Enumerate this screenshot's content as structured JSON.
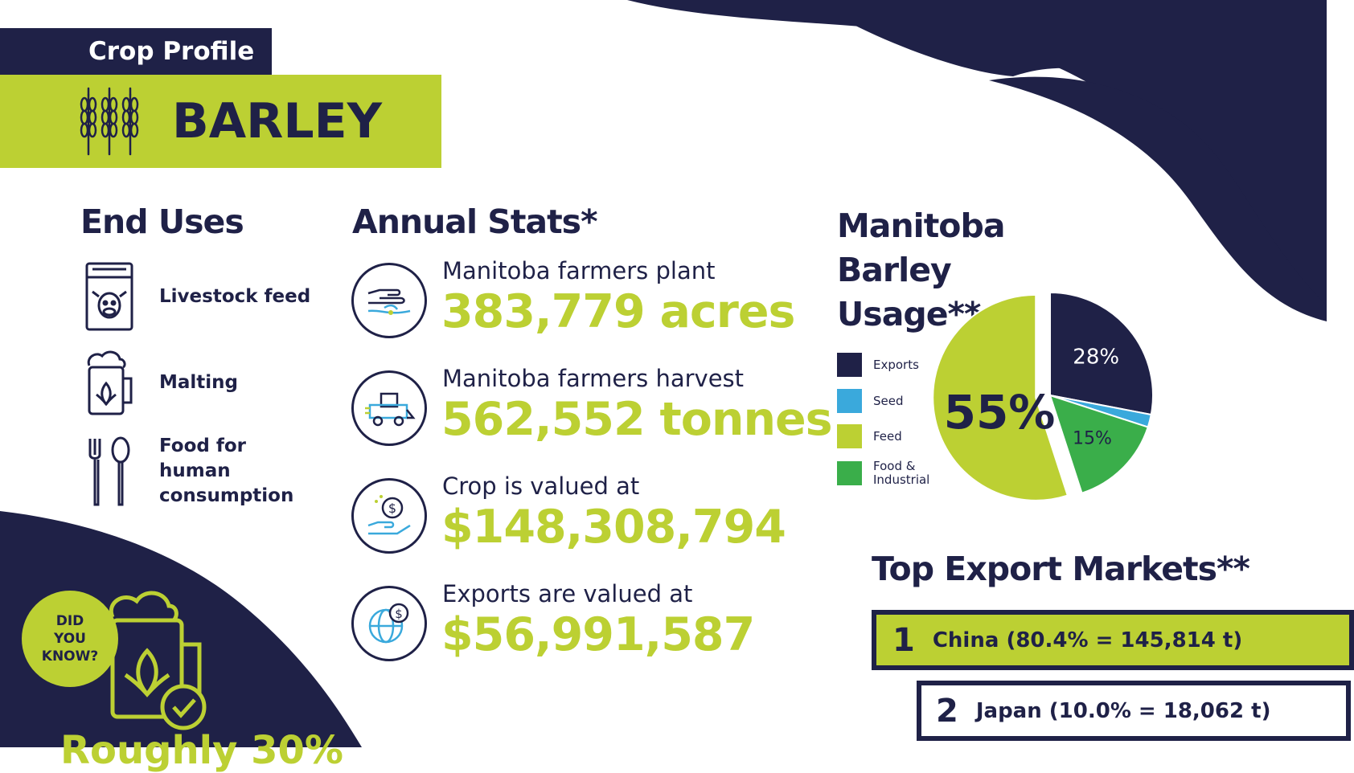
{
  "header": {
    "tag": "Crop Profile",
    "title": "BARLEY"
  },
  "end_uses": {
    "heading": "End Uses",
    "items": [
      {
        "label": "Livestock feed",
        "icon": "feed-bag-icon"
      },
      {
        "label": "Malting",
        "icon": "beer-mug-icon"
      },
      {
        "label": "Food for human consumption",
        "icon": "fork-spoon-icon"
      }
    ]
  },
  "annual_stats": {
    "heading": "Annual Stats*",
    "items": [
      {
        "caption": "Manitoba farmers plant",
        "value": "383,779 acres",
        "icon": "planting-hand-icon"
      },
      {
        "caption": "Manitoba farmers harvest",
        "value": "562,552 tonnes",
        "icon": "combine-harvester-icon"
      },
      {
        "caption": "Crop is valued at",
        "value": "$148,308,794",
        "icon": "money-hand-icon"
      },
      {
        "caption": "Exports are valued at",
        "value": "$56,991,587",
        "icon": "globe-dollar-icon"
      }
    ]
  },
  "usage": {
    "heading_lines": [
      "Manitoba",
      "Barley",
      "Usage**"
    ]
  },
  "chart_data": {
    "type": "pie",
    "title": "Manitoba Barley Usage**",
    "slices": [
      {
        "name": "Exports",
        "value": 28,
        "label": "28%",
        "color": "#1f2147"
      },
      {
        "name": "Seed",
        "value": 2,
        "label": "",
        "color": "#3aa9dc"
      },
      {
        "name": "Food & Industrial",
        "value": 15,
        "label": "15%",
        "color": "#3aae4a"
      },
      {
        "name": "Feed",
        "value": 55,
        "label": "55%",
        "color": "#bcd033"
      }
    ],
    "legend": [
      {
        "name": "Exports",
        "color": "#1f2147"
      },
      {
        "name": "Seed",
        "color": "#3aa9dc"
      },
      {
        "name": "Feed",
        "color": "#bcd033"
      },
      {
        "name": "Food & Industrial",
        "color": "#3aae4a"
      }
    ],
    "legend_position": "left"
  },
  "exports": {
    "heading": "Top Export Markets**",
    "rows": [
      {
        "rank": "1",
        "label": "China  (80.4% = 145,814 t)"
      },
      {
        "rank": "2",
        "label": "Japan  (10.0% = 18,062 t)"
      }
    ]
  },
  "did_you_know": {
    "badge": "DID YOU KNOW?",
    "text": "Roughly 30%"
  },
  "colors": {
    "navy": "#1f2147",
    "lime": "#bcd033",
    "green": "#3aae4a",
    "blue": "#3aa9dc"
  }
}
